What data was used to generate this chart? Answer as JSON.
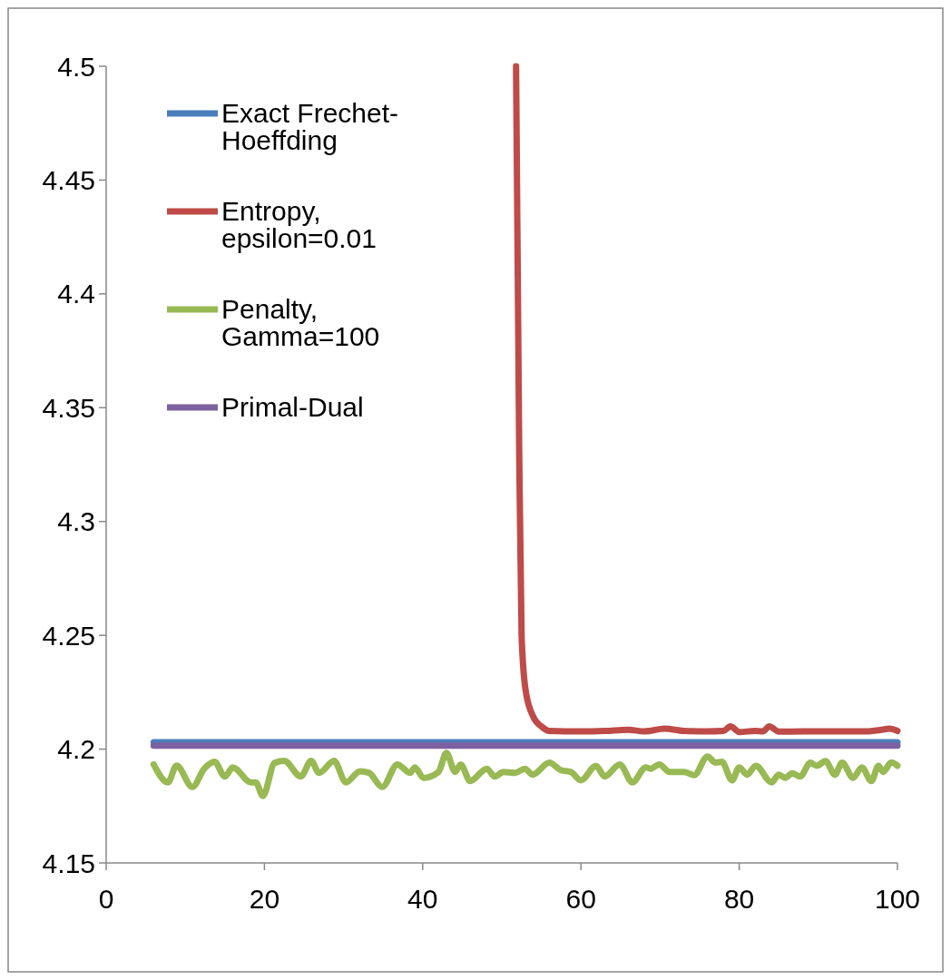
{
  "chart_data": {
    "type": "line",
    "xlim": [
      0,
      100
    ],
    "xticks": [
      0,
      20,
      40,
      60,
      80,
      100
    ],
    "ylim": [
      4.15,
      4.5
    ],
    "yticks": [
      {
        "value": 4.15,
        "label": "4.15"
      },
      {
        "value": 4.2,
        "label": "4.2"
      },
      {
        "value": 4.25,
        "label": "4.25"
      },
      {
        "value": 4.3,
        "label": "4.3"
      },
      {
        "value": 4.35,
        "label": "4.35"
      },
      {
        "value": 4.4,
        "label": "4.4"
      },
      {
        "value": 4.45,
        "label": "4.45"
      },
      {
        "value": 4.5,
        "label": "4.5"
      }
    ],
    "grid": false,
    "legend": "top left",
    "marker": "none",
    "line_style": "solid",
    "series": [
      {
        "name": "Exact Frechet-Hoeffding",
        "color": "#4a7ebb",
        "x": [
          6,
          100
        ],
        "values": [
          4.203,
          4.203
        ]
      },
      {
        "name": "Entropy, epsilon=0.01",
        "color": "#be4b48",
        "x": [
          51.8,
          52.2,
          52.5,
          53,
          54,
          55,
          56,
          60,
          63,
          66,
          68,
          70.6,
          73,
          76,
          78,
          78.9,
          80,
          82,
          83,
          83.8,
          85,
          88,
          92,
          96,
          98,
          99,
          100
        ],
        "values": [
          4.5,
          4.33,
          4.25,
          4.226,
          4.214,
          4.21,
          4.208,
          4.2078,
          4.208,
          4.2085,
          4.2078,
          4.209,
          4.208,
          4.2078,
          4.208,
          4.21,
          4.2075,
          4.208,
          4.2078,
          4.21,
          4.2077,
          4.2078,
          4.2078,
          4.2078,
          4.2085,
          4.209,
          4.208
        ]
      },
      {
        "name": "Penalty, Gamma=100",
        "color": "#98b954",
        "x": [
          6,
          7.8,
          8.9,
          10.9,
          12.4,
          13.7,
          15,
          16,
          18.3,
          18.9,
          19.8,
          21.3,
          22.5,
          24.6,
          25.9,
          26.9,
          28.8,
          30.3,
          32.1,
          33.2,
          34.9,
          36.8,
          38.4,
          39,
          40.1,
          42,
          43,
          44.1,
          44.8,
          46,
          48.1,
          49.1,
          50.2,
          51.7,
          52.9,
          53.9,
          56,
          57.5,
          58.7,
          60,
          61.9,
          63,
          64.9,
          66.5,
          68.2,
          68.8,
          69.9,
          71.2,
          73,
          74.3,
          76,
          77,
          77.8,
          79.1,
          80,
          81,
          82.1,
          84.1,
          85,
          85.8,
          86.7,
          87.7,
          89,
          89.8,
          90.9,
          92.1,
          93,
          94.4,
          95.5,
          96.7,
          97.6,
          98.2,
          99.2,
          100
        ],
        "values": [
          4.1933,
          4.1854,
          4.1928,
          4.1834,
          4.1914,
          4.1944,
          4.188,
          4.192,
          4.1854,
          4.1854,
          4.1794,
          4.194,
          4.1948,
          4.188,
          4.1948,
          4.1896,
          4.1948,
          4.1854,
          4.1903,
          4.1896,
          4.1834,
          4.1933,
          4.1896,
          4.192,
          4.1874,
          4.19,
          4.1983,
          4.19,
          4.1933,
          4.186,
          4.1914,
          4.188,
          4.19,
          4.1896,
          4.1914,
          4.1888,
          4.194,
          4.1907,
          4.19,
          4.1863,
          4.1927,
          4.188,
          4.1933,
          4.1854,
          4.192,
          4.1914,
          4.1933,
          4.19,
          4.19,
          4.1886,
          4.1967,
          4.1941,
          4.1944,
          4.1863,
          4.192,
          4.1888,
          4.1927,
          4.1854,
          4.1888,
          4.1874,
          4.1894,
          4.188,
          4.194,
          4.1927,
          4.1947,
          4.1888,
          4.194,
          4.1874,
          4.192,
          4.186,
          4.1927,
          4.19,
          4.1941,
          4.1927
        ]
      },
      {
        "name": "Primal-Dual",
        "color": "#7d60a0",
        "x": [
          6,
          100
        ],
        "values": [
          4.2015,
          4.2015
        ]
      }
    ]
  }
}
